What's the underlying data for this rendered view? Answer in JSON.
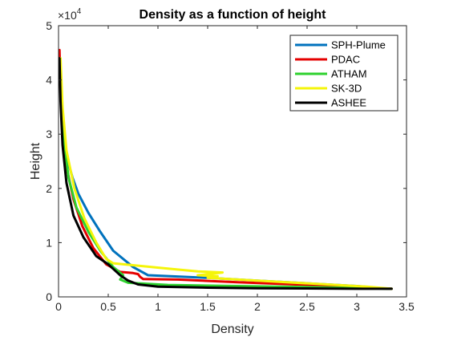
{
  "chart_data": {
    "type": "line",
    "title": "Density as a function of height",
    "xlabel": "Density",
    "ylabel": "Height",
    "xlim": [
      0,
      3.5
    ],
    "ylim": [
      0,
      50000
    ],
    "x_ticks": [
      "0",
      "0.5",
      "1",
      "1.5",
      "2",
      "2.5",
      "3",
      "3.5"
    ],
    "y_ticks": [
      "0",
      "1",
      "2",
      "3",
      "4",
      "5"
    ],
    "y_exponent_base": "×10",
    "y_exponent_power": "4",
    "grid": false,
    "legend_position": "top-right",
    "series": [
      {
        "name": "SPH-Plume",
        "color": "#0072BD",
        "x": [
          0.02,
          0.04,
          0.08,
          0.14,
          0.2,
          0.3,
          0.42,
          0.55,
          0.75,
          0.9,
          1.5,
          2.0,
          2.5,
          3.0,
          3.25
        ],
        "y": [
          40000,
          32000,
          26000,
          22000,
          19000,
          15500,
          12000,
          8500,
          5500,
          4000,
          3500,
          3000,
          2500,
          2000,
          1600
        ]
      },
      {
        "name": "PDAC",
        "color": "#E50000",
        "x": [
          0.01,
          0.02,
          0.04,
          0.08,
          0.15,
          0.24,
          0.35,
          0.48,
          0.62,
          0.75,
          0.8,
          0.82,
          0.85,
          1.2,
          1.8,
          2.5,
          3.0,
          3.35
        ],
        "y": [
          45500,
          38000,
          30000,
          24000,
          18000,
          13000,
          9000,
          6000,
          4600,
          4400,
          4200,
          3700,
          3300,
          3200,
          2700,
          2200,
          1700,
          1500
        ]
      },
      {
        "name": "ATHAM",
        "color": "#2ED12E",
        "x": [
          0.02,
          0.05,
          0.1,
          0.18,
          0.3,
          0.42,
          0.55,
          0.65,
          0.62,
          0.7,
          1.1,
          1.8,
          2.5,
          3.1,
          3.35
        ],
        "y": [
          42000,
          30000,
          22000,
          16500,
          12000,
          8500,
          5500,
          4000,
          3200,
          2600,
          2200,
          2000,
          1800,
          1600,
          1500
        ]
      },
      {
        "name": "SK-3D",
        "color": "#F5F50A",
        "x": [
          0.02,
          0.04,
          0.08,
          0.16,
          0.26,
          0.38,
          0.48,
          0.55,
          1.1,
          1.4,
          1.65,
          1.4,
          1.6,
          1.5,
          2.0,
          2.6,
          3.1,
          3.35
        ],
        "y": [
          44000,
          35000,
          27000,
          20000,
          14500,
          10000,
          7000,
          6200,
          5200,
          4700,
          4500,
          4000,
          3800,
          3500,
          3000,
          2400,
          1900,
          1500
        ]
      },
      {
        "name": "ASHEE",
        "color": "#000000",
        "x": [
          0.01,
          0.02,
          0.04,
          0.08,
          0.15,
          0.25,
          0.38,
          0.5,
          0.56,
          0.62,
          0.7,
          0.8,
          1.0,
          1.5,
          2.0,
          2.5,
          3.0,
          3.35
        ],
        "y": [
          44000,
          36000,
          28000,
          21000,
          15000,
          11000,
          7500,
          6000,
          5000,
          4000,
          3000,
          2300,
          1900,
          1700,
          1600,
          1550,
          1500,
          1500
        ]
      }
    ]
  }
}
